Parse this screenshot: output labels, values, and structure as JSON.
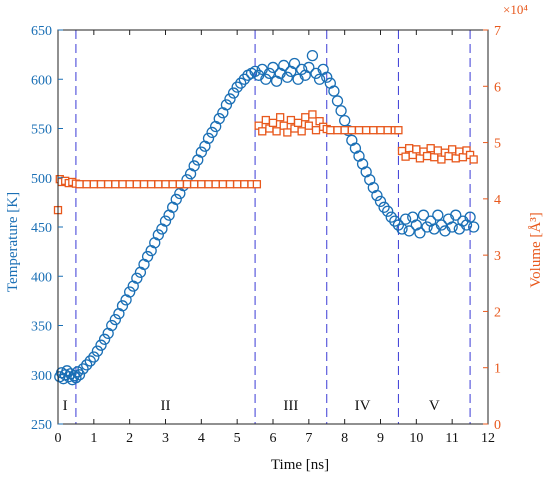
{
  "chart_data": {
    "type": "scatter",
    "xlabel": "Time [ns]",
    "xlim": [
      0,
      12
    ],
    "x_ticks": [
      "0",
      "1",
      "2",
      "3",
      "4",
      "5",
      "6",
      "7",
      "8",
      "9",
      "10",
      "11",
      "12"
    ],
    "y_left": {
      "label": "Temperature [K]",
      "lim": [
        250,
        650
      ],
      "ticks": [
        "250",
        "300",
        "350",
        "400",
        "450",
        "500",
        "550",
        "600",
        "650"
      ],
      "color": "#1a6fb5"
    },
    "y_right": {
      "label": "Volume [Å³]",
      "lim": [
        0,
        7
      ],
      "ticks": [
        "0",
        "1",
        "2",
        "3",
        "4",
        "5",
        "6",
        "7"
      ],
      "exponent": "×10⁴",
      "color": "#e8581c"
    },
    "phase_boundaries": [
      0.5,
      5.5,
      7.5,
      9.5,
      11.5
    ],
    "phase_labels": [
      {
        "text": "I",
        "x": 0.2
      },
      {
        "text": "II",
        "x": 3.0
      },
      {
        "text": "III",
        "x": 6.5
      },
      {
        "text": "IV",
        "x": 8.5
      },
      {
        "text": "V",
        "x": 10.5
      }
    ],
    "series": [
      {
        "axis": "left",
        "marker": "circle",
        "color": "#1a6fb5",
        "points": [
          [
            0.05,
            298
          ],
          [
            0.1,
            302
          ],
          [
            0.15,
            296
          ],
          [
            0.2,
            300
          ],
          [
            0.25,
            304
          ],
          [
            0.3,
            298
          ],
          [
            0.35,
            301
          ],
          [
            0.4,
            295
          ],
          [
            0.45,
            299
          ],
          [
            0.5,
            297
          ],
          [
            0.55,
            303
          ],
          [
            0.6,
            300
          ],
          [
            0.7,
            306
          ],
          [
            0.8,
            310
          ],
          [
            0.9,
            314
          ],
          [
            1.0,
            318
          ],
          [
            1.1,
            324
          ],
          [
            1.2,
            330
          ],
          [
            1.3,
            336
          ],
          [
            1.4,
            342
          ],
          [
            1.5,
            350
          ],
          [
            1.6,
            356
          ],
          [
            1.7,
            362
          ],
          [
            1.8,
            370
          ],
          [
            1.9,
            376
          ],
          [
            2.0,
            384
          ],
          [
            2.1,
            390
          ],
          [
            2.2,
            398
          ],
          [
            2.3,
            404
          ],
          [
            2.4,
            412
          ],
          [
            2.5,
            420
          ],
          [
            2.6,
            426
          ],
          [
            2.7,
            434
          ],
          [
            2.8,
            442
          ],
          [
            2.9,
            448
          ],
          [
            3.0,
            456
          ],
          [
            3.1,
            462
          ],
          [
            3.2,
            470
          ],
          [
            3.3,
            478
          ],
          [
            3.4,
            484
          ],
          [
            3.5,
            492
          ],
          [
            3.6,
            498
          ],
          [
            3.7,
            504
          ],
          [
            3.8,
            512
          ],
          [
            3.9,
            518
          ],
          [
            4.0,
            526
          ],
          [
            4.1,
            532
          ],
          [
            4.2,
            540
          ],
          [
            4.3,
            546
          ],
          [
            4.4,
            552
          ],
          [
            4.5,
            560
          ],
          [
            4.6,
            566
          ],
          [
            4.7,
            574
          ],
          [
            4.8,
            580
          ],
          [
            4.9,
            586
          ],
          [
            5.0,
            592
          ],
          [
            5.1,
            596
          ],
          [
            5.2,
            600
          ],
          [
            5.3,
            604
          ],
          [
            5.4,
            606
          ],
          [
            5.5,
            608
          ],
          [
            5.6,
            604
          ],
          [
            5.7,
            610
          ],
          [
            5.8,
            600
          ],
          [
            5.9,
            606
          ],
          [
            6.0,
            612
          ],
          [
            6.1,
            598
          ],
          [
            6.2,
            606
          ],
          [
            6.3,
            614
          ],
          [
            6.4,
            602
          ],
          [
            6.5,
            608
          ],
          [
            6.6,
            616
          ],
          [
            6.7,
            600
          ],
          [
            6.8,
            610
          ],
          [
            6.9,
            604
          ],
          [
            7.0,
            612
          ],
          [
            7.1,
            624
          ],
          [
            7.2,
            606
          ],
          [
            7.3,
            600
          ],
          [
            7.4,
            610
          ],
          [
            7.5,
            602
          ],
          [
            7.6,
            596
          ],
          [
            7.7,
            588
          ],
          [
            7.8,
            578
          ],
          [
            7.9,
            568
          ],
          [
            8.0,
            558
          ],
          [
            8.1,
            548
          ],
          [
            8.2,
            538
          ],
          [
            8.3,
            530
          ],
          [
            8.4,
            522
          ],
          [
            8.5,
            514
          ],
          [
            8.6,
            506
          ],
          [
            8.7,
            498
          ],
          [
            8.8,
            490
          ],
          [
            8.9,
            482
          ],
          [
            9.0,
            476
          ],
          [
            9.1,
            470
          ],
          [
            9.2,
            466
          ],
          [
            9.3,
            460
          ],
          [
            9.4,
            456
          ],
          [
            9.5,
            452
          ],
          [
            9.6,
            448
          ],
          [
            9.7,
            458
          ],
          [
            9.8,
            446
          ],
          [
            9.9,
            460
          ],
          [
            10.0,
            452
          ],
          [
            10.1,
            444
          ],
          [
            10.2,
            462
          ],
          [
            10.3,
            450
          ],
          [
            10.4,
            456
          ],
          [
            10.5,
            448
          ],
          [
            10.6,
            462
          ],
          [
            10.7,
            452
          ],
          [
            10.8,
            446
          ],
          [
            10.9,
            458
          ],
          [
            11.0,
            450
          ],
          [
            11.1,
            462
          ],
          [
            11.2,
            448
          ],
          [
            11.3,
            456
          ],
          [
            11.4,
            452
          ],
          [
            11.5,
            460
          ],
          [
            11.6,
            450
          ]
        ]
      },
      {
        "axis": "right",
        "marker": "square",
        "color": "#e8581c",
        "points": [
          [
            0.0,
            3.8
          ],
          [
            0.05,
            4.35
          ],
          [
            0.1,
            4.3
          ],
          [
            0.2,
            4.32
          ],
          [
            0.3,
            4.28
          ],
          [
            0.4,
            4.3
          ],
          [
            0.5,
            4.27
          ],
          [
            0.6,
            4.26
          ],
          [
            0.8,
            4.26
          ],
          [
            1.0,
            4.26
          ],
          [
            1.2,
            4.26
          ],
          [
            1.4,
            4.26
          ],
          [
            1.6,
            4.26
          ],
          [
            1.8,
            4.26
          ],
          [
            2.0,
            4.26
          ],
          [
            2.2,
            4.26
          ],
          [
            2.4,
            4.26
          ],
          [
            2.6,
            4.26
          ],
          [
            2.8,
            4.26
          ],
          [
            3.0,
            4.26
          ],
          [
            3.2,
            4.26
          ],
          [
            3.4,
            4.26
          ],
          [
            3.6,
            4.26
          ],
          [
            3.8,
            4.26
          ],
          [
            4.0,
            4.26
          ],
          [
            4.2,
            4.26
          ],
          [
            4.4,
            4.26
          ],
          [
            4.6,
            4.26
          ],
          [
            4.8,
            4.26
          ],
          [
            5.0,
            4.26
          ],
          [
            5.2,
            4.26
          ],
          [
            5.4,
            4.26
          ],
          [
            5.55,
            4.26
          ],
          [
            5.6,
            5.3
          ],
          [
            5.7,
            5.2
          ],
          [
            5.8,
            5.4
          ],
          [
            5.9,
            5.25
          ],
          [
            6.0,
            5.35
          ],
          [
            6.1,
            5.2
          ],
          [
            6.2,
            5.45
          ],
          [
            6.3,
            5.3
          ],
          [
            6.4,
            5.18
          ],
          [
            6.5,
            5.4
          ],
          [
            6.6,
            5.25
          ],
          [
            6.7,
            5.35
          ],
          [
            6.8,
            5.2
          ],
          [
            6.9,
            5.45
          ],
          [
            7.0,
            5.3
          ],
          [
            7.1,
            5.5
          ],
          [
            7.2,
            5.22
          ],
          [
            7.3,
            5.38
          ],
          [
            7.4,
            5.28
          ],
          [
            7.5,
            5.24
          ],
          [
            7.6,
            5.22
          ],
          [
            7.8,
            5.22
          ],
          [
            8.0,
            5.22
          ],
          [
            8.2,
            5.22
          ],
          [
            8.4,
            5.22
          ],
          [
            8.6,
            5.22
          ],
          [
            8.8,
            5.22
          ],
          [
            9.0,
            5.22
          ],
          [
            9.2,
            5.22
          ],
          [
            9.4,
            5.22
          ],
          [
            9.5,
            5.22
          ],
          [
            9.6,
            4.85
          ],
          [
            9.7,
            4.75
          ],
          [
            9.8,
            4.9
          ],
          [
            9.9,
            4.78
          ],
          [
            10.0,
            4.88
          ],
          [
            10.1,
            4.72
          ],
          [
            10.2,
            4.84
          ],
          [
            10.3,
            4.76
          ],
          [
            10.4,
            4.9
          ],
          [
            10.5,
            4.74
          ],
          [
            10.6,
            4.86
          ],
          [
            10.7,
            4.7
          ],
          [
            10.8,
            4.82
          ],
          [
            10.9,
            4.76
          ],
          [
            11.0,
            4.88
          ],
          [
            11.1,
            4.72
          ],
          [
            11.2,
            4.84
          ],
          [
            11.3,
            4.74
          ],
          [
            11.4,
            4.86
          ],
          [
            11.5,
            4.78
          ],
          [
            11.6,
            4.7
          ]
        ]
      }
    ]
  }
}
